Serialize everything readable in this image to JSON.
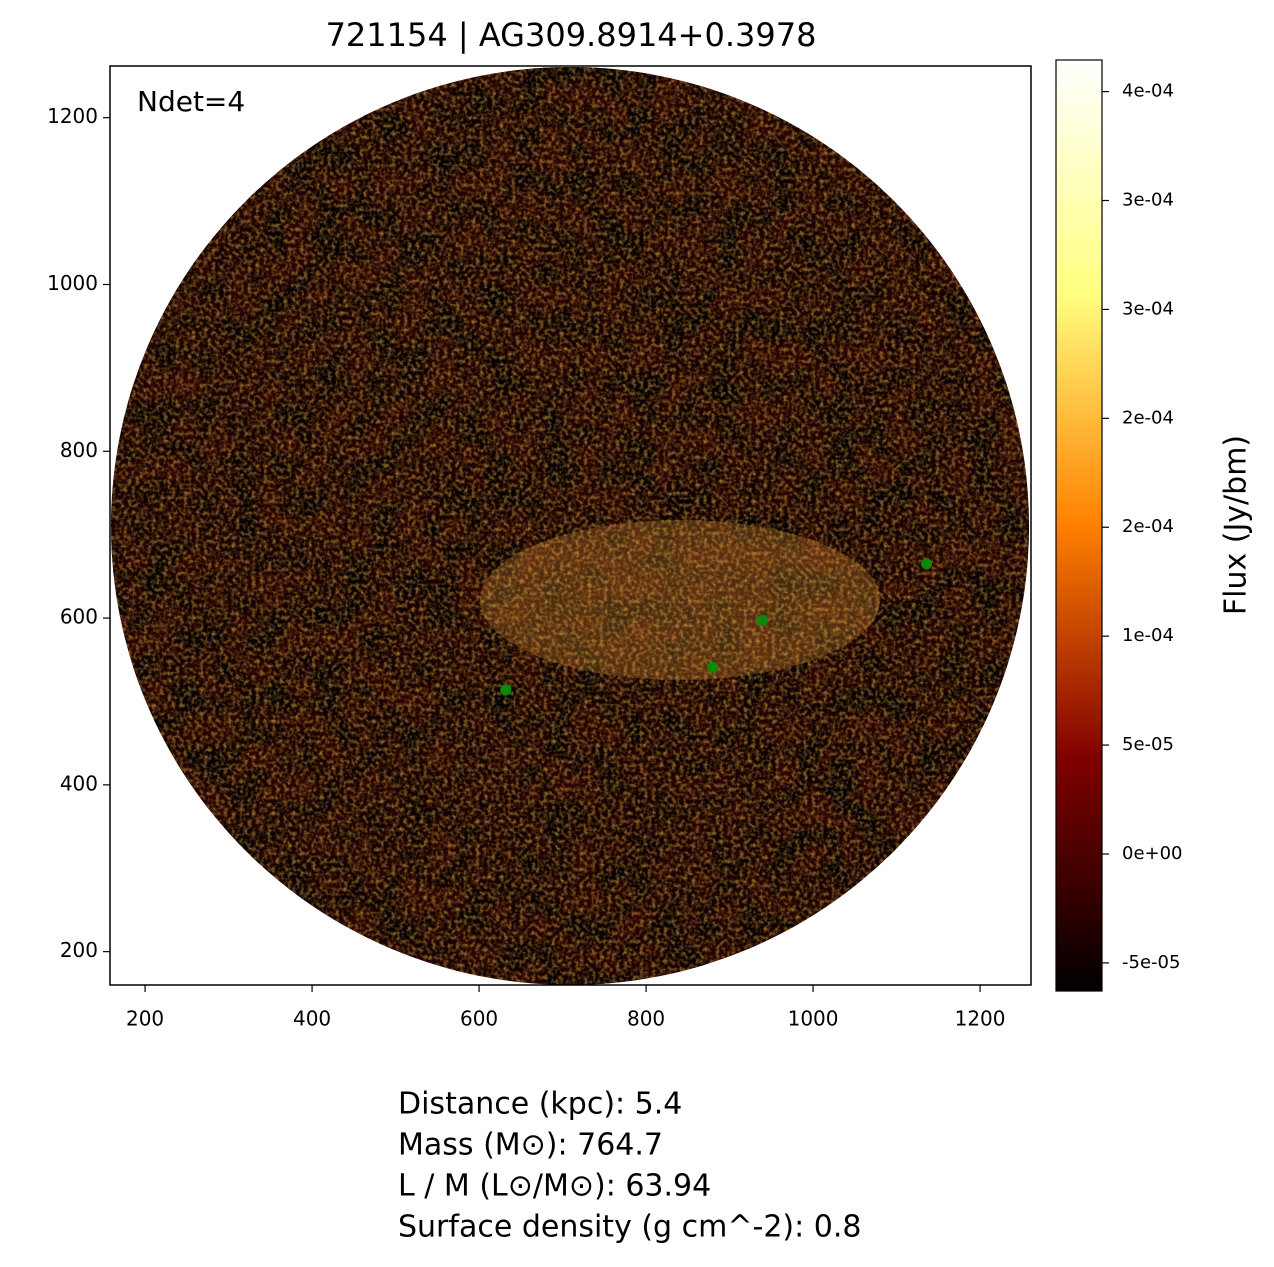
{
  "chart_data": {
    "type": "scatter",
    "title": "721154 | AG309.8914+0.3978",
    "annotation": "Ndet=4",
    "x": [
      632,
      880,
      939,
      1136
    ],
    "y": [
      514,
      541,
      597,
      665
    ],
    "color": "#0a8a0a",
    "xlim": [
      158,
      1261
    ],
    "ylim": [
      160,
      1262
    ],
    "xticks": [
      200,
      400,
      600,
      800,
      1000,
      1200
    ],
    "yticks": [
      200,
      400,
      600,
      800,
      1000,
      1200
    ],
    "colormap": "afmhot",
    "colorbar": {
      "label": "Flux (Jy/bm)",
      "lim": [
        -6.29e-05,
        0.0003645
      ],
      "ticks": [
        {
          "value": -5e-05,
          "label": "-5e-05"
        },
        {
          "value": 0,
          "label": "0e+00"
        },
        {
          "value": 5e-05,
          "label": "5e-05"
        },
        {
          "value": 0.0001,
          "label": "1e-04"
        },
        {
          "value": 0.00015,
          "label": "2e-04"
        },
        {
          "value": 0.0002,
          "label": "2e-04"
        },
        {
          "value": 0.00025,
          "label": "3e-04"
        },
        {
          "value": 0.0003,
          "label": "3e-04"
        },
        {
          "value": 0.00035,
          "label": "4e-04"
        }
      ]
    },
    "notes": [
      "Distance (kpc): 5.4",
      "Mass (M⊙): 764.7",
      "L / M (L⊙/M⊙): 63.94",
      "Surface density (g cm^-2): 0.8"
    ]
  }
}
